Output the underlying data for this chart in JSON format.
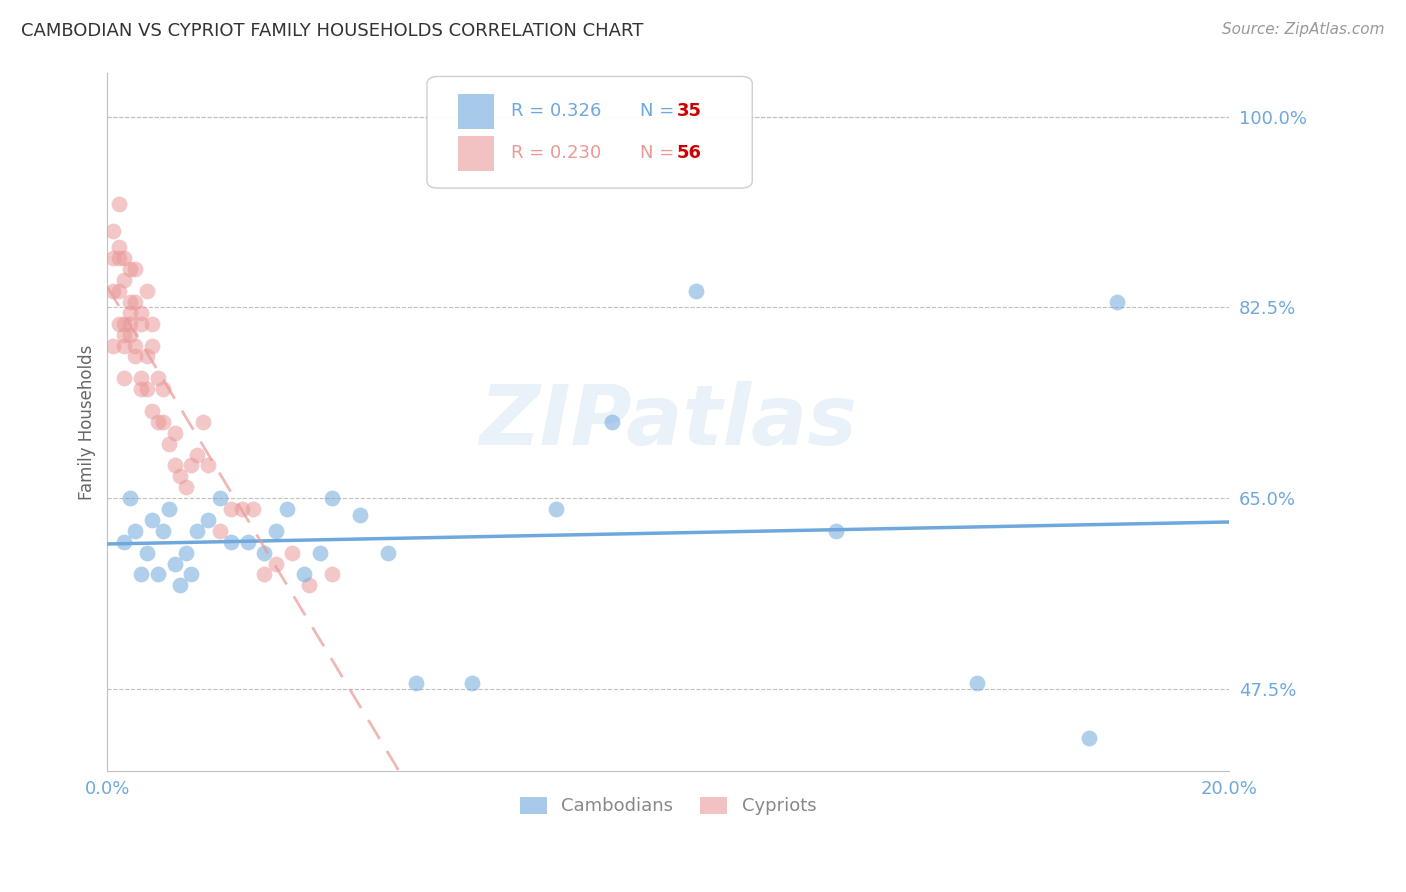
{
  "title": "CAMBODIAN VS CYPRIOT FAMILY HOUSEHOLDS CORRELATION CHART",
  "source": "Source: ZipAtlas.com",
  "ylabel": "Family Households",
  "watermark": "ZIPatlas",
  "xlim": [
    0.0,
    0.2
  ],
  "ylim": [
    0.4,
    1.04
  ],
  "ytick_shown": [
    0.475,
    0.65,
    0.825,
    1.0
  ],
  "ytick_shown_labels": [
    "47.5%",
    "65.0%",
    "82.5%",
    "100.0%"
  ],
  "xtick_shown": [
    0.0,
    0.05,
    0.1,
    0.15,
    0.2
  ],
  "xtick_shown_labels": [
    "0.0%",
    "",
    "",
    "",
    "20.0%"
  ],
  "cambodian_color": "#6fa8dc",
  "cypriot_color": "#ea9999",
  "cambodian_R": 0.326,
  "cambodian_N": 35,
  "cypriot_R": 0.23,
  "cypriot_N": 56,
  "background_color": "#ffffff",
  "grid_color": "#c0c0c0",
  "tick_label_color": "#6fa8dc",
  "title_color": "#333333",
  "cambodian_x": [
    0.003,
    0.004,
    0.005,
    0.006,
    0.007,
    0.008,
    0.009,
    0.01,
    0.011,
    0.012,
    0.013,
    0.014,
    0.015,
    0.016,
    0.018,
    0.02,
    0.022,
    0.025,
    0.028,
    0.03,
    0.032,
    0.035,
    0.038,
    0.04,
    0.045,
    0.05,
    0.055,
    0.065,
    0.08,
    0.09,
    0.105,
    0.13,
    0.155,
    0.175,
    0.18
  ],
  "cambodian_y": [
    0.61,
    0.65,
    0.62,
    0.58,
    0.6,
    0.63,
    0.58,
    0.62,
    0.64,
    0.59,
    0.57,
    0.6,
    0.58,
    0.62,
    0.63,
    0.65,
    0.61,
    0.61,
    0.6,
    0.62,
    0.64,
    0.58,
    0.6,
    0.65,
    0.635,
    0.6,
    0.48,
    0.48,
    0.64,
    0.72,
    0.84,
    0.62,
    0.48,
    0.43,
    0.83
  ],
  "cypriot_x": [
    0.001,
    0.001,
    0.001,
    0.001,
    0.002,
    0.002,
    0.002,
    0.003,
    0.003,
    0.003,
    0.003,
    0.004,
    0.004,
    0.004,
    0.005,
    0.005,
    0.006,
    0.006,
    0.007,
    0.008,
    0.009,
    0.01,
    0.011,
    0.012,
    0.013,
    0.014,
    0.015,
    0.016,
    0.017,
    0.018,
    0.02,
    0.022,
    0.024,
    0.026,
    0.028,
    0.03,
    0.033,
    0.036,
    0.04,
    0.005,
    0.003,
    0.002,
    0.007,
    0.004,
    0.006,
    0.008,
    0.002,
    0.003,
    0.004,
    0.005,
    0.006,
    0.007,
    0.008,
    0.009,
    0.01,
    0.012
  ],
  "cypriot_y": [
    0.895,
    0.84,
    0.79,
    0.87,
    0.84,
    0.81,
    0.88,
    0.79,
    0.76,
    0.8,
    0.81,
    0.8,
    0.82,
    0.81,
    0.79,
    0.78,
    0.76,
    0.75,
    0.75,
    0.73,
    0.72,
    0.72,
    0.7,
    0.68,
    0.67,
    0.66,
    0.68,
    0.69,
    0.72,
    0.68,
    0.62,
    0.64,
    0.64,
    0.64,
    0.58,
    0.59,
    0.6,
    0.57,
    0.58,
    0.86,
    0.87,
    0.92,
    0.84,
    0.83,
    0.82,
    0.81,
    0.87,
    0.85,
    0.86,
    0.83,
    0.81,
    0.78,
    0.79,
    0.76,
    0.75,
    0.71
  ]
}
